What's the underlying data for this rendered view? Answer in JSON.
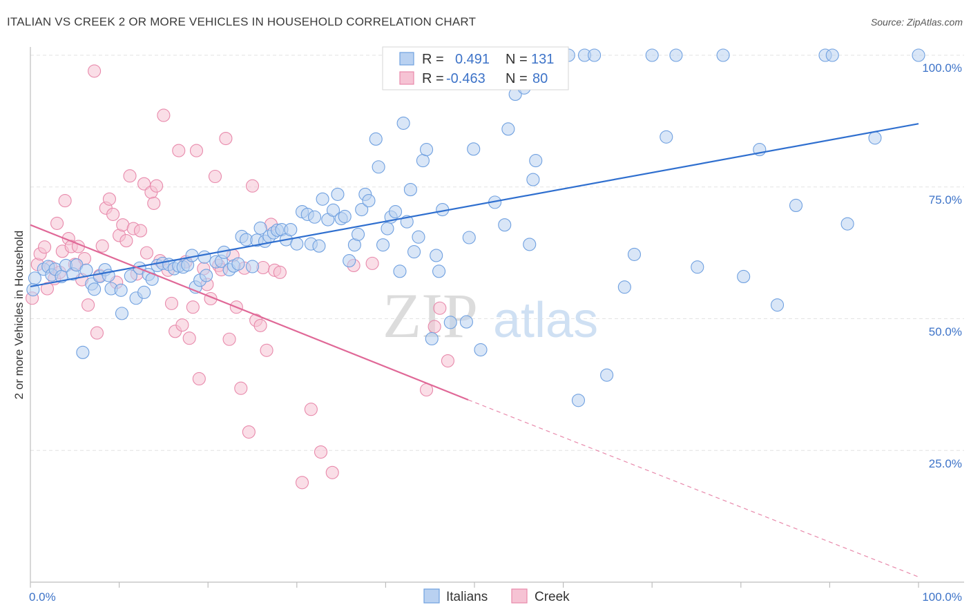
{
  "header": {
    "title": "ITALIAN VS CREEK 2 OR MORE VEHICLES IN HOUSEHOLD CORRELATION CHART",
    "source": "Source: ZipAtlas.com"
  },
  "watermark": {
    "part1": "ZIP",
    "part2": "atlas"
  },
  "legend": {
    "rows": [
      {
        "r_label": "R =",
        "r_value": "0.491",
        "n_label": "N =",
        "n_value": "131",
        "color": "#6fa0e0",
        "fill": "#b9d1f1"
      },
      {
        "r_label": "R =",
        "r_value": "-0.463",
        "n_label": "N =",
        "n_value": "80",
        "color": "#e889ab",
        "fill": "#f6c3d4"
      }
    ]
  },
  "bottom_legend": {
    "series1": "Italians",
    "series2": "Creek"
  },
  "axes": {
    "y_label": "2 or more Vehicles in Household",
    "x_tick_left": "0.0%",
    "x_tick_right": "100.0%",
    "y_ticks": [
      "100.0%",
      "75.0%",
      "50.0%",
      "25.0%"
    ]
  },
  "chart_data": {
    "type": "scatter",
    "title": "ITALIAN VS CREEK 2 OR MORE VEHICLES IN HOUSEHOLD CORRELATION CHART",
    "xlabel": "",
    "ylabel": "2 or more Vehicles in Household",
    "xlim": [
      0,
      100
    ],
    "ylim": [
      0,
      100
    ],
    "grid": true,
    "legend_position": "top-center",
    "series": [
      {
        "name": "Italians",
        "color": "#6fa0e0",
        "fill": "#b9d1f1",
        "trend": {
          "x0": 0,
          "y0": 56.1,
          "x1": 100,
          "y1": 87.0
        },
        "points": [
          [
            0.3,
            55.5
          ],
          [
            0.5,
            57.7
          ],
          [
            1.5,
            59.4
          ],
          [
            2.0,
            59.9
          ],
          [
            2.4,
            58.3
          ],
          [
            2.8,
            59.4
          ],
          [
            3.5,
            58.0
          ],
          [
            4.0,
            60.1
          ],
          [
            4.8,
            58.5
          ],
          [
            5.2,
            60.2
          ],
          [
            5.9,
            43.6
          ],
          [
            6.3,
            59.2
          ],
          [
            6.9,
            56.6
          ],
          [
            7.2,
            55.6
          ],
          [
            7.8,
            58.0
          ],
          [
            8.4,
            59.3
          ],
          [
            8.8,
            58.2
          ],
          [
            9.1,
            55.7
          ],
          [
            10.2,
            55.4
          ],
          [
            10.3,
            51.0
          ],
          [
            11.3,
            58.1
          ],
          [
            11.9,
            53.9
          ],
          [
            12.3,
            59.6
          ],
          [
            12.8,
            55.0
          ],
          [
            13.3,
            58.4
          ],
          [
            13.7,
            57.5
          ],
          [
            14.3,
            60.1
          ],
          [
            14.9,
            60.5
          ],
          [
            15.6,
            60.3
          ],
          [
            16.2,
            59.5
          ],
          [
            16.7,
            60.0
          ],
          [
            17.2,
            59.8
          ],
          [
            17.7,
            60.2
          ],
          [
            18.2,
            62.0
          ],
          [
            18.6,
            56.0
          ],
          [
            19.1,
            57.3
          ],
          [
            19.6,
            61.7
          ],
          [
            19.8,
            58.2
          ],
          [
            20.9,
            60.8
          ],
          [
            21.5,
            60.9
          ],
          [
            21.8,
            62.6
          ],
          [
            22.4,
            59.3
          ],
          [
            22.9,
            60.0
          ],
          [
            23.4,
            60.4
          ],
          [
            23.8,
            65.6
          ],
          [
            24.3,
            65.0
          ],
          [
            25.0,
            59.9
          ],
          [
            25.5,
            64.9
          ],
          [
            25.9,
            67.2
          ],
          [
            26.4,
            64.7
          ],
          [
            26.9,
            65.6
          ],
          [
            27.4,
            66.3
          ],
          [
            27.8,
            66.8
          ],
          [
            28.3,
            66.9
          ],
          [
            28.8,
            65.0
          ],
          [
            29.3,
            66.9
          ],
          [
            30.0,
            64.2
          ],
          [
            30.6,
            70.3
          ],
          [
            31.2,
            69.8
          ],
          [
            31.6,
            64.2
          ],
          [
            32.0,
            69.3
          ],
          [
            32.5,
            63.8
          ],
          [
            32.9,
            72.7
          ],
          [
            33.5,
            68.8
          ],
          [
            34.1,
            70.6
          ],
          [
            34.6,
            73.6
          ],
          [
            35.0,
            69.0
          ],
          [
            35.4,
            69.4
          ],
          [
            35.9,
            61.0
          ],
          [
            36.5,
            64.0
          ],
          [
            36.9,
            66.0
          ],
          [
            37.3,
            70.7
          ],
          [
            37.7,
            73.6
          ],
          [
            38.1,
            72.4
          ],
          [
            38.9,
            84.1
          ],
          [
            39.2,
            78.8
          ],
          [
            39.7,
            64.0
          ],
          [
            40.2,
            67.1
          ],
          [
            40.6,
            69.3
          ],
          [
            41.1,
            70.3
          ],
          [
            41.6,
            59.0
          ],
          [
            42.0,
            87.1
          ],
          [
            42.4,
            68.4
          ],
          [
            42.8,
            74.5
          ],
          [
            43.2,
            62.7
          ],
          [
            43.7,
            65.5
          ],
          [
            44.2,
            80.0
          ],
          [
            44.6,
            82.1
          ],
          [
            45.2,
            46.2
          ],
          [
            45.7,
            62.0
          ],
          [
            46.0,
            59.0
          ],
          [
            46.4,
            70.7
          ],
          [
            47.3,
            49.3
          ],
          [
            47.9,
            100.0
          ],
          [
            48.3,
            100.0
          ],
          [
            49.1,
            49.4
          ],
          [
            49.4,
            65.4
          ],
          [
            49.9,
            82.2
          ],
          [
            50.7,
            44.1
          ],
          [
            51.4,
            100.0
          ],
          [
            52.3,
            72.1
          ],
          [
            53.4,
            67.8
          ],
          [
            53.8,
            86.0
          ],
          [
            54.6,
            92.6
          ],
          [
            55.1,
            100.0
          ],
          [
            55.6,
            93.8
          ],
          [
            56.2,
            64.1
          ],
          [
            56.6,
            76.4
          ],
          [
            56.9,
            80.0
          ],
          [
            58.1,
            100.0
          ],
          [
            59.4,
            100.0
          ],
          [
            60.6,
            100.0
          ],
          [
            61.7,
            34.5
          ],
          [
            62.4,
            100.0
          ],
          [
            63.5,
            100.0
          ],
          [
            64.9,
            39.3
          ],
          [
            66.9,
            56.0
          ],
          [
            68.0,
            62.2
          ],
          [
            70.0,
            100.0
          ],
          [
            71.6,
            84.5
          ],
          [
            72.7,
            100.0
          ],
          [
            75.1,
            59.8
          ],
          [
            78.0,
            100.0
          ],
          [
            80.3,
            58.0
          ],
          [
            82.1,
            82.1
          ],
          [
            84.1,
            52.6
          ],
          [
            86.2,
            71.5
          ],
          [
            89.5,
            100.0
          ],
          [
            90.3,
            100.0
          ],
          [
            92.0,
            68.0
          ],
          [
            95.1,
            84.3
          ],
          [
            100.0,
            100.0
          ]
        ]
      },
      {
        "name": "Creek",
        "color": "#e889ab",
        "fill": "#f6c3d4",
        "trend": {
          "x0": 0,
          "y0": 67.8,
          "x1": 49.3,
          "y1": 34.6,
          "x_dash_end": 100,
          "y_dash_end": 1.0
        },
        "points": [
          [
            0.2,
            53.9
          ],
          [
            0.8,
            60.3
          ],
          [
            1.1,
            62.3
          ],
          [
            1.6,
            63.6
          ],
          [
            1.9,
            55.7
          ],
          [
            2.3,
            59.8
          ],
          [
            2.7,
            57.6
          ],
          [
            3.0,
            68.1
          ],
          [
            3.3,
            58.8
          ],
          [
            3.6,
            62.8
          ],
          [
            3.9,
            72.4
          ],
          [
            4.3,
            65.2
          ],
          [
            4.6,
            63.7
          ],
          [
            5.0,
            60.3
          ],
          [
            5.4,
            63.7
          ],
          [
            5.8,
            57.4
          ],
          [
            6.1,
            61.4
          ],
          [
            6.5,
            52.6
          ],
          [
            7.2,
            97.0
          ],
          [
            7.5,
            47.3
          ],
          [
            7.8,
            58.2
          ],
          [
            8.1,
            63.8
          ],
          [
            8.5,
            71.0
          ],
          [
            8.9,
            72.7
          ],
          [
            9.3,
            69.8
          ],
          [
            9.7,
            56.9
          ],
          [
            10.0,
            65.8
          ],
          [
            10.4,
            67.8
          ],
          [
            10.8,
            64.8
          ],
          [
            11.2,
            77.1
          ],
          [
            11.6,
            67.1
          ],
          [
            12.0,
            58.5
          ],
          [
            12.4,
            66.7
          ],
          [
            12.8,
            75.6
          ],
          [
            13.1,
            62.5
          ],
          [
            13.6,
            74.0
          ],
          [
            13.9,
            71.9
          ],
          [
            14.2,
            75.2
          ],
          [
            14.6,
            61.0
          ],
          [
            15.0,
            88.6
          ],
          [
            15.5,
            59.2
          ],
          [
            15.9,
            52.9
          ],
          [
            16.3,
            47.6
          ],
          [
            16.7,
            81.9
          ],
          [
            17.1,
            48.8
          ],
          [
            17.5,
            60.8
          ],
          [
            17.9,
            46.3
          ],
          [
            18.3,
            52.2
          ],
          [
            18.7,
            81.9
          ],
          [
            19.0,
            38.6
          ],
          [
            19.5,
            59.5
          ],
          [
            19.9,
            56.5
          ],
          [
            20.3,
            53.8
          ],
          [
            20.8,
            77.0
          ],
          [
            21.2,
            60.1
          ],
          [
            21.5,
            59.3
          ],
          [
            22.0,
            84.2
          ],
          [
            22.4,
            46.1
          ],
          [
            22.8,
            62.0
          ],
          [
            23.2,
            52.2
          ],
          [
            23.7,
            36.8
          ],
          [
            24.1,
            59.6
          ],
          [
            24.6,
            28.5
          ],
          [
            25.0,
            75.2
          ],
          [
            25.4,
            49.7
          ],
          [
            25.9,
            48.7
          ],
          [
            26.2,
            59.7
          ],
          [
            26.6,
            44.0
          ],
          [
            27.1,
            67.9
          ],
          [
            27.5,
            59.2
          ],
          [
            28.1,
            58.8
          ],
          [
            30.6,
            18.9
          ],
          [
            31.6,
            32.8
          ],
          [
            32.7,
            24.7
          ],
          [
            34.0,
            20.8
          ],
          [
            36.4,
            60.1
          ],
          [
            38.5,
            60.5
          ],
          [
            44.6,
            36.5
          ],
          [
            45.5,
            48.5
          ],
          [
            46.1,
            52.0
          ],
          [
            47.0,
            42.0
          ]
        ]
      }
    ]
  }
}
